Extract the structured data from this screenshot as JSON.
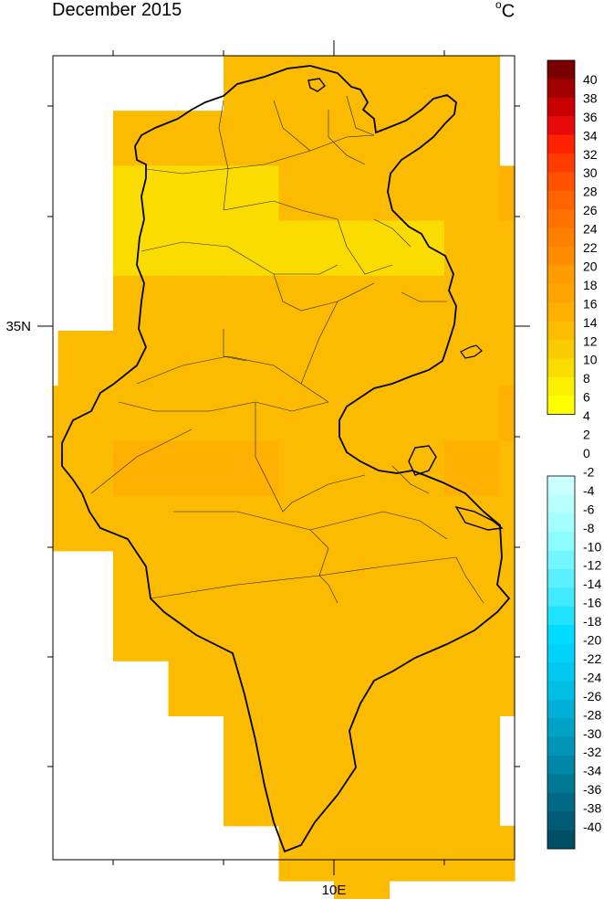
{
  "title": "December 2015",
  "units_base": "o",
  "units_letter": "C",
  "axis": {
    "x_label": "10E",
    "y_label": "35N"
  },
  "colorbar": {
    "warm": [
      {
        "label": "40",
        "color": "#7a0000"
      },
      {
        "label": "38",
        "color": "#a00000"
      },
      {
        "label": "36",
        "color": "#c80000"
      },
      {
        "label": "34",
        "color": "#e60a0a"
      },
      {
        "label": "32",
        "color": "#ff2200"
      },
      {
        "label": "30",
        "color": "#ff3c00"
      },
      {
        "label": "28",
        "color": "#ff5200"
      },
      {
        "label": "26",
        "color": "#ff6400"
      },
      {
        "label": "24",
        "color": "#ff7200"
      },
      {
        "label": "22",
        "color": "#ff8000"
      },
      {
        "label": "20",
        "color": "#ff8c00"
      },
      {
        "label": "18",
        "color": "#ff9c00"
      },
      {
        "label": "16",
        "color": "#ffa400"
      },
      {
        "label": "14",
        "color": "#ffb000"
      },
      {
        "label": "12",
        "color": "#fcbc00"
      },
      {
        "label": "10",
        "color": "#f8cc00"
      },
      {
        "label": "8",
        "color": "#fbdc00"
      },
      {
        "label": "6",
        "color": "#fbf000"
      },
      {
        "label": "4",
        "color": "#ffff00"
      }
    ],
    "zero_labels": [
      "2",
      "0"
    ],
    "cold": [
      {
        "label": "-2",
        "color": "#ccffff"
      },
      {
        "label": "-4",
        "color": "#b8ffff"
      },
      {
        "label": "-6",
        "color": "#a4ffff"
      },
      {
        "label": "-8",
        "color": "#8cfcff"
      },
      {
        "label": "-10",
        "color": "#74f6ff"
      },
      {
        "label": "-12",
        "color": "#5cf0ff"
      },
      {
        "label": "-14",
        "color": "#40eaff"
      },
      {
        "label": "-16",
        "color": "#20e4ff"
      },
      {
        "label": "-18",
        "color": "#00dcff"
      },
      {
        "label": "-20",
        "color": "#00d2fa"
      },
      {
        "label": "-22",
        "color": "#00c8f0"
      },
      {
        "label": "-24",
        "color": "#00bee4"
      },
      {
        "label": "-26",
        "color": "#00b0d6"
      },
      {
        "label": "-28",
        "color": "#00a2c6"
      },
      {
        "label": "-30",
        "color": "#0094b6"
      },
      {
        "label": "-32",
        "color": "#0086a6"
      },
      {
        "label": "-34",
        "color": "#007896"
      },
      {
        "label": "-36",
        "color": "#006a86"
      },
      {
        "label": "-38",
        "color": "#005c76"
      },
      {
        "label": "-40",
        "color": "#004e66"
      }
    ]
  },
  "grid": {
    "bins": {
      "c10_12": "#fbbb00",
      "c12_14": "#ffb000",
      "c14_16": "#ffa300",
      "c8_10": "#fbdc00"
    },
    "rows": [
      "....22222...",
      "..2222222.44",
      "..333222242.",
      "..3333332244",
      "..222222222.",
      ".22222222242",
      "22222222242.",
      "224442224222",
      "22222222222444",
      "..2222222222..",
      "..2222222222..",
      "...222222222..",
      "....22222.....",
      "....22222.....",
      ".....22222....",
      "......2......."
    ]
  }
}
